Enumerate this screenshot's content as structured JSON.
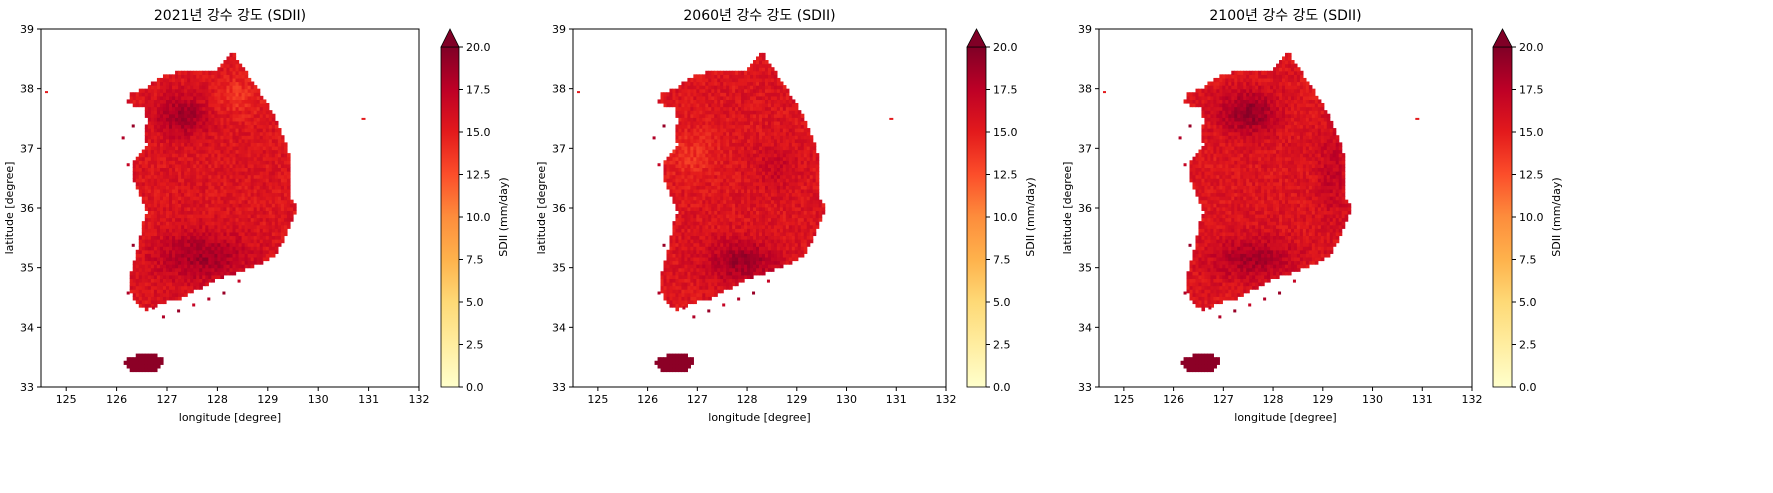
{
  "figure": {
    "panels": [
      {
        "title": "2021년 강수 강도 (SDII)",
        "pattern": "wet_west"
      },
      {
        "title": "2060년 강수 강도 (SDII)",
        "pattern": "dry_west"
      },
      {
        "title": "2100년 강수 강도 (SDII)",
        "pattern": "wet_northwest"
      }
    ],
    "xlabel": "longitude [degree]",
    "ylabel": "latitude [degree]",
    "colorbar_label": "SDII (mm/day)",
    "colormap": "YlOrRd",
    "colorbar_extend": "max"
  },
  "chart_data": [
    {
      "type": "heatmap",
      "title": "2021년 강수 강도 (SDII)",
      "xlabel": "longitude [degree]",
      "ylabel": "latitude [degree]",
      "xlim": [
        124.5,
        132
      ],
      "ylim": [
        33,
        39
      ],
      "xticks": [
        125,
        126,
        127,
        128,
        129,
        130,
        131,
        132
      ],
      "yticks": [
        33,
        34,
        35,
        36,
        37,
        38,
        39
      ],
      "colorbar": {
        "label": "SDII (mm/day)",
        "vmin": 0,
        "vmax": 20,
        "ticks": [
          "0.0",
          "2.5",
          "5.0",
          "7.5",
          "10.0",
          "12.5",
          "15.0",
          "17.5",
          "20.0"
        ]
      }
    },
    {
      "type": "heatmap",
      "title": "2060년 강수 강도 (SDII)",
      "xlabel": "longitude [degree]",
      "ylabel": "latitude [degree]",
      "xlim": [
        124.5,
        132
      ],
      "ylim": [
        33,
        39
      ],
      "xticks": [
        125,
        126,
        127,
        128,
        129,
        130,
        131,
        132
      ],
      "yticks": [
        33,
        34,
        35,
        36,
        37,
        38,
        39
      ],
      "colorbar": {
        "label": "SDII (mm/day)",
        "vmin": 0,
        "vmax": 20,
        "ticks": [
          "0.0",
          "2.5",
          "5.0",
          "7.5",
          "10.0",
          "12.5",
          "15.0",
          "17.5",
          "20.0"
        ]
      }
    },
    {
      "type": "heatmap",
      "title": "2100년 강수 강도 (SDII)",
      "xlabel": "longitude [degree]",
      "ylabel": "latitude [degree]",
      "xlim": [
        124.5,
        132
      ],
      "ylim": [
        33,
        39
      ],
      "xticks": [
        125,
        126,
        127,
        128,
        129,
        130,
        131,
        132
      ],
      "yticks": [
        33,
        34,
        35,
        36,
        37,
        38,
        39
      ],
      "colorbar": {
        "label": "SDII (mm/day)",
        "vmin": 0,
        "vmax": 20,
        "ticks": [
          "0.0",
          "2.5",
          "5.0",
          "7.5",
          "10.0",
          "12.5",
          "15.0",
          "17.5",
          "20.0"
        ]
      }
    }
  ]
}
